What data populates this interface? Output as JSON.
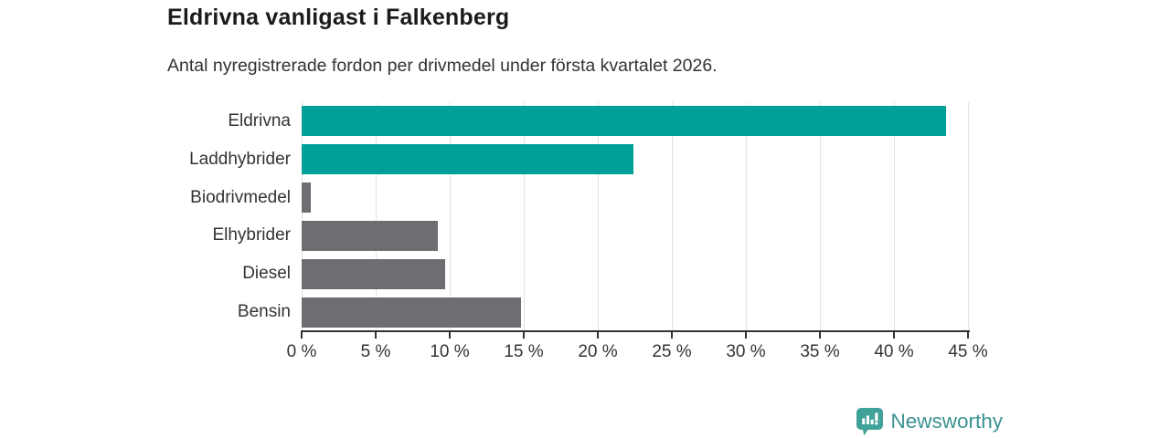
{
  "header": {
    "title": "Eldrivna vanligast i Falkenberg",
    "subtitle": "Antal nyregistrerade fordon per drivmedel under första kvartalet 2026."
  },
  "colors": {
    "accent": "#00A099",
    "neutral": "#6D6D72",
    "grid": "#E3E3E5",
    "axis": "#333333",
    "text": "#333333",
    "title": "#1B1B1B",
    "brand": "#3A9292",
    "brand_icon": "#41A29A"
  },
  "chart_data": {
    "type": "bar",
    "orientation": "horizontal",
    "title": "Eldrivna vanligast i Falkenberg",
    "subtitle": "Antal nyregistrerade fordon per drivmedel under första kvartalet 2026.",
    "categories": [
      "Eldrivna",
      "Laddhybrider",
      "Biodrivmedel",
      "Elhybrider",
      "Diesel",
      "Bensin"
    ],
    "values": [
      43.5,
      22.4,
      0.6,
      9.2,
      9.7,
      14.8
    ],
    "bar_color_keys": [
      "accent",
      "accent",
      "neutral",
      "neutral",
      "neutral",
      "neutral"
    ],
    "unit": "%",
    "xlabel": "",
    "ylabel": "",
    "xlim": [
      0,
      45
    ],
    "x_ticks": [
      0,
      5,
      10,
      15,
      20,
      25,
      30,
      35,
      40,
      45
    ],
    "x_tick_labels": [
      "0 %",
      "5 %",
      "10 %",
      "15 %",
      "20 %",
      "25 %",
      "30 %",
      "35 %",
      "40 %",
      "45 %"
    ],
    "grid": "vertical",
    "legend": "none"
  },
  "footer": {
    "brand_name": "Newsworthy",
    "brand_icon": "bar-chart-speech-bubble"
  }
}
